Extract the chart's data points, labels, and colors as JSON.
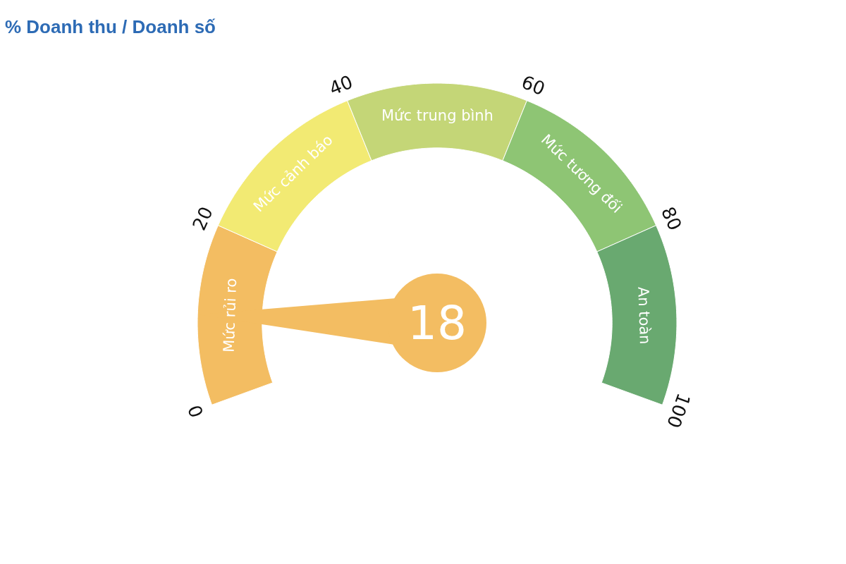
{
  "chart_data": {
    "type": "donut",
    "title": "% Doanh thu / Doanh số",
    "categories": [
      "Mức rủi ro",
      "Mức cảnh báo",
      "Mức trung bình",
      "Mức tương đối",
      "An toàn"
    ],
    "values": [
      20,
      20,
      20,
      20,
      20
    ],
    "colors": [
      "#f3bd62",
      "#f2ea73",
      "#c4d677",
      "#8ec574",
      "#69a970"
    ],
    "needle": "Mức rủi ro",
    "annotations": [
      "0",
      "20",
      "40",
      "60",
      "80",
      "100",
      "18"
    ]
  }
}
